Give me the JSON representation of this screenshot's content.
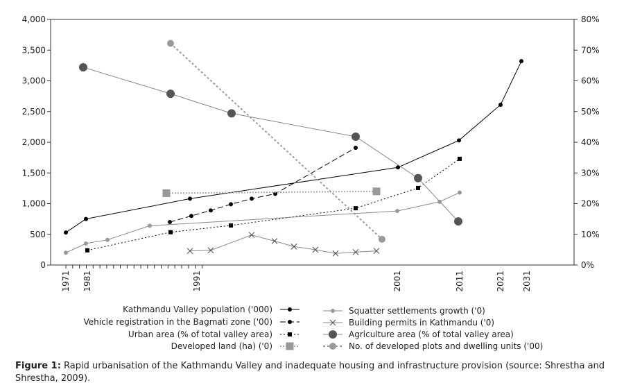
{
  "chart_data": {
    "type": "line",
    "caption_label": "Figure 1:",
    "caption_text": "Rapid urbanisation of the Kathmandu Valley and inadequate housing and infrastructure provision (source: Shrestha and Shrestha, 2009).",
    "x_ticks": [
      "1971",
      "1981",
      "1991",
      "2001",
      "2011",
      "2021",
      "2031"
    ],
    "y_left_ticks": [
      "0",
      "500",
      "1,000",
      "1,500",
      "2,000",
      "2,500",
      "3,000",
      "3,500",
      "4,000"
    ],
    "y_right_ticks": [
      "0%",
      "10%",
      "20%",
      "30%",
      "40%",
      "50%",
      "60%",
      "70%",
      "80%"
    ],
    "ylim_left": [
      0,
      4000
    ],
    "ylim_right": [
      0,
      80
    ],
    "xlim": [
      1970,
      2040
    ],
    "grid": false,
    "series": [
      {
        "name": "Kathmandu Valley population ('000)",
        "axis": "left",
        "style": "solid-black-dot",
        "x": [
          1971,
          1981,
          1991,
          2001,
          2011,
          2021,
          2031
        ],
        "y": [
          530,
          750,
          1080,
          1590,
          2030,
          2610,
          3320
        ]
      },
      {
        "name": "Vehicle registration in the Bagmati zone ('00)",
        "axis": "left",
        "style": "dash-black-dot",
        "x": [
          1988,
          1991,
          1994,
          1996,
          1998,
          2000,
          2006
        ],
        "y": [
          700,
          800,
          890,
          990,
          1080,
          1160,
          1910
        ]
      },
      {
        "name": "Urban area (% of total valley area)",
        "axis": "right",
        "style": "dot-black-square",
        "x": [
          1981,
          1988,
          1995,
          2006,
          2010,
          2014
        ],
        "y": [
          4.8,
          10.7,
          12.9,
          18.5,
          25.1,
          34.6
        ]
      },
      {
        "name": "Developed land (ha) ('0)",
        "axis": "left",
        "style": "dot-gray-square",
        "x": [
          1987,
          2006
        ],
        "y": [
          1170,
          1200
        ]
      },
      {
        "name": "Squatter settlements growth ('0)",
        "axis": "left",
        "style": "solid-gray-dot",
        "x": [
          1971,
          1981,
          1984,
          1987,
          2001,
          2010,
          2014
        ],
        "y": [
          200,
          350,
          410,
          640,
          880,
          1030,
          1180
        ]
      },
      {
        "name": "Building permits in Kathmandu ('0)",
        "axis": "left",
        "style": "solid-gray-x",
        "x": [
          1990,
          1993,
          1996,
          1998,
          2000,
          2002,
          2004,
          2006,
          2008
        ],
        "y": [
          230,
          240,
          490,
          390,
          300,
          250,
          190,
          210,
          230
        ]
      },
      {
        "name": "Agriculture area (% of total valley area)",
        "axis": "right",
        "style": "solid-gray-bigdot",
        "x": [
          1977,
          1987,
          1997,
          2011,
          2014,
          2023
        ],
        "y": [
          64.4,
          55.8,
          49.4,
          41.8,
          28.3,
          14.2
        ]
      },
      {
        "name": "No. of developed plots and dwelling units ('00)",
        "axis": "left",
        "style": "dot-gray-dot",
        "x": [
          1987,
          2009
        ],
        "y": [
          3610,
          420
        ]
      }
    ]
  }
}
